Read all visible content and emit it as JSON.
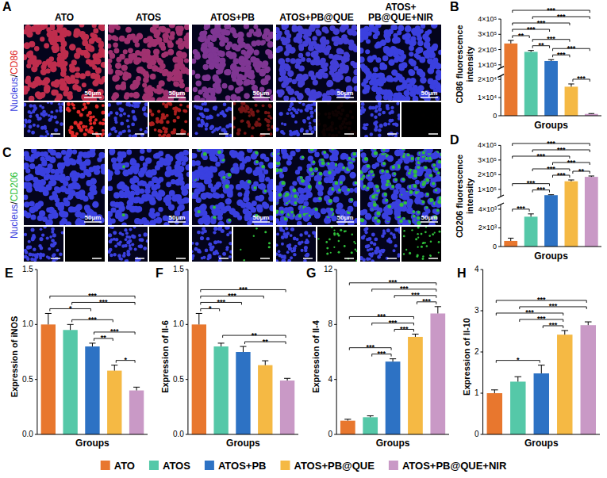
{
  "images": {
    "columns": [
      "ATO",
      "ATOS",
      "ATOS+PB",
      "ATOS+PB@QUE",
      "ATOS+PB@QUE+NIR"
    ],
    "nucleus_label": "Nucleus",
    "nucleus_color": "#3a40e0",
    "separator": "/",
    "scale_label": "50μm",
    "rows": [
      {
        "panel": "A",
        "marker_label": "CD86",
        "marker_color": "#e02828"
      },
      {
        "panel": "C",
        "marker_label": "CD206",
        "marker_color": "#2fbf3a"
      }
    ]
  },
  "chart_data": [
    {
      "type": "bar",
      "panel": "B",
      "y_label": "CD86 fluorescence intensity",
      "x_label": "Groups",
      "categories": [
        "ATO",
        "ATOS",
        "ATOS+PB",
        "ATOS+PB@QUE",
        "ATOS+PB@QUE+NIR"
      ],
      "values": [
        240000,
        185000,
        125000,
        16000,
        1000
      ],
      "errors": [
        20000,
        9000,
        9000,
        1500,
        200
      ],
      "colors": [
        "#e8772e",
        "#55c8a8",
        "#2d72c4",
        "#f5b944",
        "#c999c6"
      ],
      "ylim": [
        0,
        400000
      ],
      "ybreak": [
        22000,
        80000
      ],
      "yticks": [
        0,
        {
          "value": 10000,
          "label": "1×10⁴"
        },
        {
          "value": 20000,
          "label": "2×10⁴"
        },
        {
          "value": 100000,
          "label": "1×10⁵"
        },
        {
          "value": 200000,
          "label": "2×10⁵"
        },
        {
          "value": 300000,
          "label": "3×10⁵"
        },
        {
          "value": 400000,
          "label": "4×10⁵"
        }
      ],
      "tick_labels": "y",
      "legend": "bottom",
      "significance": [
        {
          "pair": [
            0,
            1
          ],
          "label": "**"
        },
        {
          "pair": [
            1,
            2
          ],
          "label": "**"
        },
        {
          "pair": [
            2,
            3
          ],
          "label": "***"
        },
        {
          "pair": [
            3,
            4
          ],
          "label": "***"
        },
        {
          "pair": [
            0,
            2
          ],
          "label": "***"
        },
        {
          "pair": [
            1,
            3
          ],
          "label": "***"
        },
        {
          "pair": [
            2,
            4
          ],
          "label": "***"
        },
        {
          "pair": [
            0,
            3
          ],
          "label": "***"
        },
        {
          "pair": [
            1,
            4
          ],
          "label": "***"
        },
        {
          "pair": [
            0,
            4
          ],
          "label": "***"
        }
      ]
    },
    {
      "type": "bar",
      "panel": "D",
      "y_label": "CD206 fluorescence intensity",
      "x_label": "Groups",
      "categories": [
        "ATO",
        "ATOS",
        "ATOS+PB",
        "ATOS+PB@QUE",
        "ATOS+PB@QUE+NIR"
      ],
      "values": [
        600,
        3200,
        60000,
        155000,
        185000
      ],
      "errors": [
        300,
        300,
        3000,
        9000,
        6000
      ],
      "colors": [
        "#e8772e",
        "#55c8a8",
        "#2d72c4",
        "#f5b944",
        "#c999c6"
      ],
      "ylim": [
        0,
        400000
      ],
      "ybreak": [
        4500,
        50000
      ],
      "yticks": [
        0,
        {
          "value": 2000,
          "label": "2×10³"
        },
        {
          "value": 4000,
          "label": "4×10³"
        },
        {
          "value": 100000,
          "label": "1×10⁵"
        },
        {
          "value": 200000,
          "label": "2×10⁵"
        },
        {
          "value": 300000,
          "label": "3×10⁵"
        },
        {
          "value": 400000,
          "label": "4×10⁵"
        }
      ],
      "tick_labels": "y",
      "significance": [
        {
          "pair": [
            0,
            1
          ],
          "label": "***"
        },
        {
          "pair": [
            1,
            2
          ],
          "label": "***"
        },
        {
          "pair": [
            2,
            3
          ],
          "label": "***"
        },
        {
          "pair": [
            3,
            4
          ],
          "label": "**"
        },
        {
          "pair": [
            0,
            2
          ],
          "label": "***"
        },
        {
          "pair": [
            1,
            3
          ],
          "label": "***"
        },
        {
          "pair": [
            2,
            4
          ],
          "label": "***"
        },
        {
          "pair": [
            0,
            3
          ],
          "label": "***"
        },
        {
          "pair": [
            1,
            4
          ],
          "label": "***"
        },
        {
          "pair": [
            0,
            4
          ],
          "label": "***"
        }
      ]
    },
    {
      "type": "bar",
      "panel": "E",
      "y_label": "Expression of iNOS",
      "x_label": "Groups",
      "categories": [
        "ATO",
        "ATOS",
        "ATOS+PB",
        "ATOS+PB@QUE",
        "ATOS+PB@QUE+NIR"
      ],
      "values": [
        1.0,
        0.95,
        0.8,
        0.58,
        0.4
      ],
      "errors": [
        0.1,
        0.05,
        0.03,
        0.05,
        0.03
      ],
      "colors": [
        "#e8772e",
        "#55c8a8",
        "#2d72c4",
        "#f5b944",
        "#c999c6"
      ],
      "ylim": [
        0,
        1.5
      ],
      "yticks": [
        {
          "value": 0,
          "label": "0.0"
        },
        0.5,
        {
          "value": 1,
          "label": "1.0"
        },
        1.5
      ],
      "tick_labels": "y",
      "significance": [
        {
          "pair": [
            0,
            4
          ],
          "label": "***"
        },
        {
          "pair": [
            1,
            4
          ],
          "label": "***"
        },
        {
          "pair": [
            0,
            2
          ],
          "label": "*"
        },
        {
          "pair": [
            1,
            3
          ],
          "label": "***"
        },
        {
          "pair": [
            2,
            4
          ],
          "label": "***"
        },
        {
          "pair": [
            2,
            3
          ],
          "label": "**"
        },
        {
          "pair": [
            3,
            4
          ],
          "label": "*"
        }
      ]
    },
    {
      "type": "bar",
      "panel": "F",
      "y_label": "Expression of Il-6",
      "x_label": "Groups",
      "categories": [
        "ATO",
        "ATOS",
        "ATOS+PB",
        "ATOS+PB@QUE",
        "ATOS+PB@QUE+NIR"
      ],
      "values": [
        1.0,
        0.8,
        0.75,
        0.63,
        0.49
      ],
      "errors": [
        0.1,
        0.03,
        0.05,
        0.04,
        0.02
      ],
      "colors": [
        "#e8772e",
        "#55c8a8",
        "#2d72c4",
        "#f5b944",
        "#c999c6"
      ],
      "ylim": [
        0,
        1.5
      ],
      "yticks": [
        {
          "value": 0,
          "label": "0.0"
        },
        0.5,
        {
          "value": 1,
          "label": "1.0"
        },
        1.5
      ],
      "tick_labels": "y",
      "significance": [
        {
          "pair": [
            0,
            4
          ],
          "label": "***"
        },
        {
          "pair": [
            0,
            3
          ],
          "label": "***"
        },
        {
          "pair": [
            1,
            4
          ],
          "label": "**"
        },
        {
          "pair": [
            0,
            1
          ],
          "label": "*"
        },
        {
          "pair": [
            0,
            2
          ],
          "label": "***"
        },
        {
          "pair": [
            2,
            4
          ],
          "label": "**"
        }
      ]
    },
    {
      "type": "bar",
      "panel": "G",
      "y_label": "Expression of Il-4",
      "x_label": "Groups",
      "categories": [
        "ATO",
        "ATOS",
        "ATOS+PB",
        "ATOS+PB@QUE",
        "ATOS+PB@QUE+NIR"
      ],
      "values": [
        1.0,
        1.25,
        5.3,
        7.1,
        8.8
      ],
      "errors": [
        0.1,
        0.1,
        0.2,
        0.2,
        0.5
      ],
      "colors": [
        "#e8772e",
        "#55c8a8",
        "#2d72c4",
        "#f5b944",
        "#c999c6"
      ],
      "ylim": [
        0,
        12
      ],
      "yticks": [
        0,
        4,
        8,
        12
      ],
      "tick_labels": "y",
      "significance": [
        {
          "pair": [
            0,
            4
          ],
          "label": "***"
        },
        {
          "pair": [
            1,
            4
          ],
          "label": "***"
        },
        {
          "pair": [
            0,
            3
          ],
          "label": "***"
        },
        {
          "pair": [
            1,
            3
          ],
          "label": "***"
        },
        {
          "pair": [
            2,
            4
          ],
          "label": "***"
        },
        {
          "pair": [
            0,
            2
          ],
          "label": "***"
        },
        {
          "pair": [
            1,
            2
          ],
          "label": "***"
        },
        {
          "pair": [
            2,
            3
          ],
          "label": "***"
        },
        {
          "pair": [
            3,
            4
          ],
          "label": "***"
        }
      ]
    },
    {
      "type": "bar",
      "panel": "H",
      "y_label": "Expression of Il-10",
      "x_label": "Groups",
      "categories": [
        "ATO",
        "ATOS",
        "ATOS+PB",
        "ATOS+PB@QUE",
        "ATOS+PB@QUE+NIR"
      ],
      "values": [
        1.0,
        1.28,
        1.48,
        2.42,
        2.65
      ],
      "errors": [
        0.08,
        0.12,
        0.2,
        0.1,
        0.08
      ],
      "colors": [
        "#e8772e",
        "#55c8a8",
        "#2d72c4",
        "#f5b944",
        "#c999c6"
      ],
      "ylim": [
        0,
        4
      ],
      "yticks": [
        0,
        1,
        2,
        3,
        4
      ],
      "tick_labels": "y",
      "significance": [
        {
          "pair": [
            0,
            4
          ],
          "label": "***"
        },
        {
          "pair": [
            1,
            4
          ],
          "label": "***"
        },
        {
          "pair": [
            0,
            2
          ],
          "label": "*"
        },
        {
          "pair": [
            0,
            3
          ],
          "label": "***"
        },
        {
          "pair": [
            1,
            3
          ],
          "label": "***"
        },
        {
          "pair": [
            2,
            3
          ],
          "label": "***"
        }
      ]
    }
  ]
}
